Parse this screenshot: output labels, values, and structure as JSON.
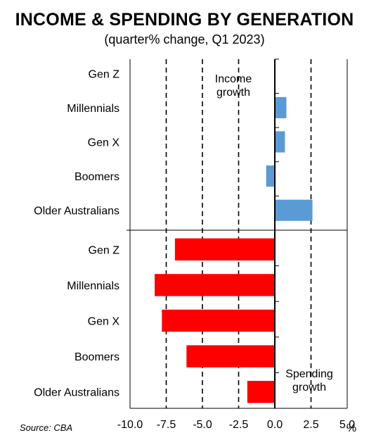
{
  "chart_data": {
    "type": "bar",
    "orientation": "horizontal",
    "title": "INCOME & SPENDING BY GENERATION",
    "subtitle": "(quarter% change, Q1 2023)",
    "xlim": [
      -10,
      5
    ],
    "xticks": [
      "-10.0",
      "-7.5",
      "-5.0",
      "-2.5",
      "0.0",
      "2.5",
      "5.0"
    ],
    "xunit": "%",
    "grid": "dashed vertical",
    "panels": [
      {
        "annotation": [
          "Income",
          "growth"
        ],
        "color": "#5b9bd5",
        "categories": [
          "Gen Z",
          "Millennials",
          "Gen X",
          "Boomers",
          "Older Australians"
        ],
        "values": [
          0.0,
          0.8,
          0.7,
          -0.6,
          2.6
        ]
      },
      {
        "annotation": [
          "Spending",
          "growth"
        ],
        "color": "#ff0000",
        "categories": [
          "Gen Z",
          "Millennials",
          "Gen X",
          "Boomers",
          "Older Australians"
        ],
        "values": [
          -6.9,
          -8.3,
          -7.8,
          -6.1,
          -1.9
        ]
      }
    ],
    "source": "Source: CBA"
  }
}
